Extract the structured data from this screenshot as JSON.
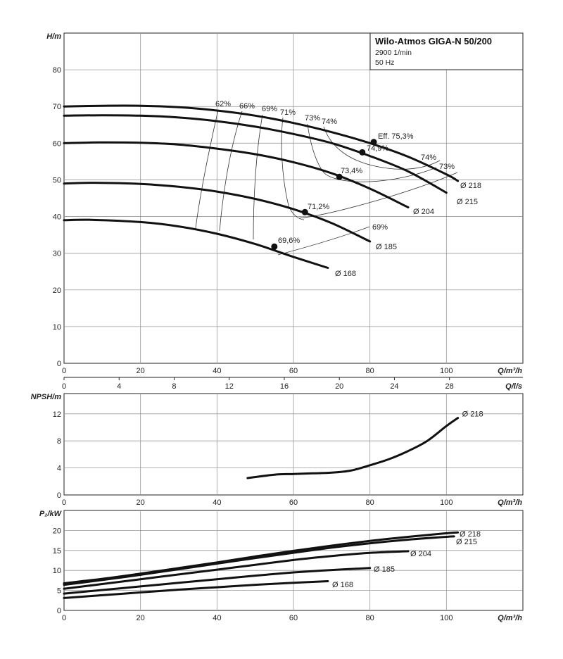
{
  "header": {
    "title": "Wilo-Atmos GIGA-N 50/200",
    "speed": "2900 1/min",
    "frequency": "50 Hz"
  },
  "chart_data": [
    {
      "type": "line",
      "id": "head",
      "ylabel": "H/m",
      "xlabel": "Q/m³/h",
      "xlim": [
        0,
        120
      ],
      "ylim": [
        0,
        90
      ],
      "xticks": [
        0,
        20,
        40,
        60,
        80,
        100
      ],
      "yticks": [
        0,
        10,
        20,
        30,
        40,
        50,
        60,
        70,
        80
      ],
      "secondary_axis": {
        "xlabel": "Q/l/s",
        "ticks": [
          0,
          4,
          8,
          12,
          16,
          20,
          24,
          28
        ]
      },
      "grid": true,
      "series": [
        {
          "name": "Ø 218",
          "x": [
            0,
            10,
            20,
            30,
            40,
            50,
            60,
            70,
            80,
            90,
            100,
            103
          ],
          "y": [
            70,
            70.2,
            70.2,
            69.8,
            68.9,
            67.5,
            65.5,
            63,
            60,
            56.3,
            51.5,
            49.7
          ]
        },
        {
          "name": "Ø 215",
          "x": [
            0,
            10,
            20,
            30,
            40,
            50,
            60,
            70,
            80,
            90,
            100
          ],
          "y": [
            67.5,
            67.6,
            67.5,
            67,
            66,
            64.5,
            62.5,
            60,
            56.5,
            52.3,
            46.5
          ]
        },
        {
          "name": "Ø 204",
          "x": [
            0,
            9,
            20,
            30,
            40,
            50,
            60,
            70,
            80,
            90
          ],
          "y": [
            60,
            60.2,
            60.1,
            59.6,
            58.5,
            57,
            54.8,
            51.8,
            47.6,
            42.5
          ]
        },
        {
          "name": "Ø 185",
          "x": [
            0,
            8,
            20,
            30,
            40,
            50,
            60,
            70,
            80
          ],
          "y": [
            49,
            49.2,
            48.9,
            48.1,
            46.8,
            44.8,
            42,
            38.2,
            33.2
          ]
        },
        {
          "name": "Ø 168",
          "x": [
            0,
            7,
            20,
            30,
            40,
            50,
            60,
            69
          ],
          "y": [
            39,
            39.1,
            38.5,
            37.3,
            35.3,
            32.5,
            29,
            26
          ]
        }
      ],
      "bep_points": [
        {
          "x": 81,
          "y": 60.3,
          "label": "Eff. 75,3%"
        },
        {
          "x": 78,
          "y": 57.5,
          "label": "74,9%"
        },
        {
          "x": 72,
          "y": 50.8,
          "label": "73,4%"
        },
        {
          "x": 63,
          "y": 41.2,
          "label": "71,2%"
        },
        {
          "x": 55,
          "y": 31.8,
          "label": "69,6%"
        }
      ],
      "efficiency_labels": [
        "62%",
        "66%",
        "69%",
        "71%",
        "73%",
        "74%",
        "74%",
        "73%",
        "69%"
      ]
    },
    {
      "type": "line",
      "id": "npsh",
      "ylabel": "NPSH/m",
      "xlabel": "Q/m³/h",
      "xlim": [
        0,
        120
      ],
      "ylim": [
        0,
        15
      ],
      "xticks": [
        0,
        20,
        40,
        60,
        80,
        100
      ],
      "yticks": [
        0,
        4,
        8,
        12
      ],
      "grid": true,
      "series": [
        {
          "name": "Ø 218",
          "x": [
            48,
            55,
            60,
            65,
            70,
            75,
            80,
            85,
            90,
            95,
            100,
            103
          ],
          "y": [
            2.5,
            3.0,
            3.1,
            3.2,
            3.3,
            3.6,
            4.4,
            5.3,
            6.5,
            8.0,
            10.2,
            11.4
          ]
        }
      ]
    },
    {
      "type": "line",
      "id": "power",
      "ylabel": "P₂/kW",
      "xlabel": "Q/m³/h",
      "xlim": [
        0,
        120
      ],
      "ylim": [
        0,
        25
      ],
      "xticks": [
        0,
        20,
        40,
        60,
        80,
        100
      ],
      "yticks": [
        0,
        5,
        10,
        15,
        20
      ],
      "grid": true,
      "series": [
        {
          "name": "Ø 218",
          "x": [
            0,
            10,
            20,
            30,
            40,
            50,
            60,
            70,
            80,
            90,
            100,
            103
          ],
          "y": [
            6.8,
            7.9,
            9.2,
            10.6,
            12.0,
            13.5,
            14.9,
            16.2,
            17.4,
            18.4,
            19.3,
            19.5
          ]
        },
        {
          "name": "Ø 215",
          "x": [
            0,
            10,
            20,
            30,
            40,
            50,
            60,
            70,
            80,
            90,
            100,
            102
          ],
          "y": [
            6.4,
            7.6,
            8.9,
            10.3,
            11.7,
            13.1,
            14.4,
            15.7,
            16.8,
            17.7,
            18.4,
            18.5
          ]
        },
        {
          "name": "Ø 204",
          "x": [
            0,
            10,
            20,
            30,
            40,
            50,
            60,
            70,
            80,
            90
          ],
          "y": [
            5.4,
            6.6,
            7.8,
            9.0,
            10.2,
            11.4,
            12.6,
            13.6,
            14.4,
            14.8
          ]
        },
        {
          "name": "Ø 185",
          "x": [
            0,
            10,
            20,
            30,
            40,
            50,
            60,
            70,
            80
          ],
          "y": [
            4.2,
            5.1,
            6.0,
            6.9,
            7.8,
            8.7,
            9.5,
            10.1,
            10.6
          ]
        },
        {
          "name": "Ø 168",
          "x": [
            0,
            10,
            20,
            30,
            40,
            50,
            60,
            69
          ],
          "y": [
            3.1,
            3.8,
            4.5,
            5.2,
            5.8,
            6.4,
            6.9,
            7.3
          ]
        }
      ]
    }
  ]
}
